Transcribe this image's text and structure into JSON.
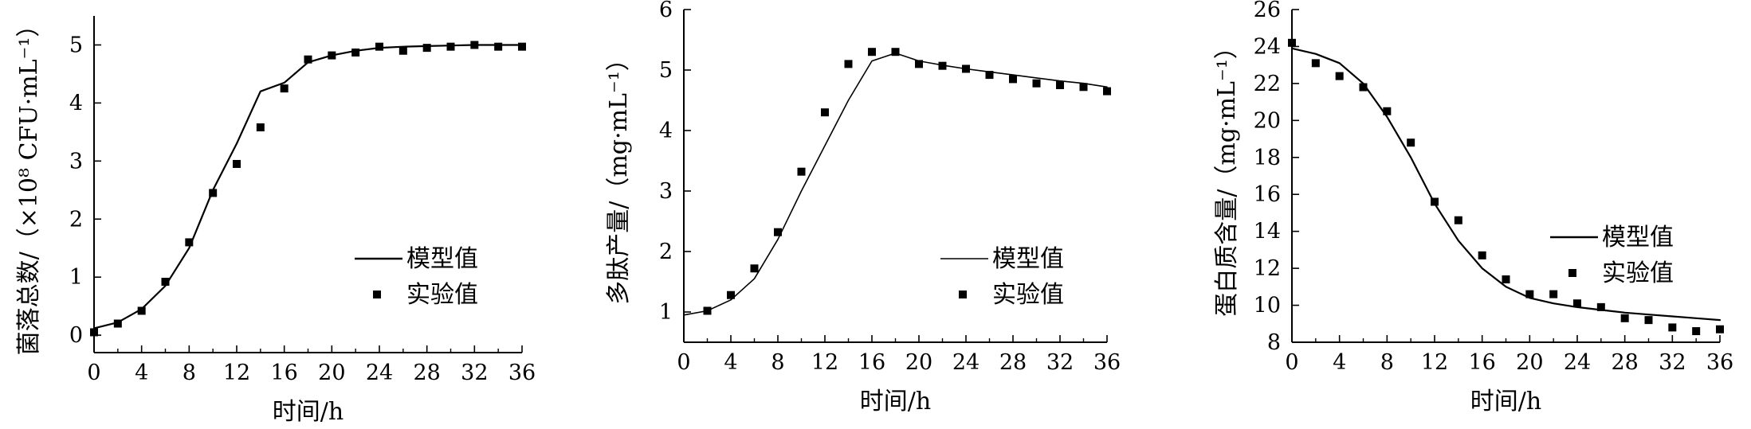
{
  "chart_data": [
    {
      "type": "line",
      "xlabel": "时间/h",
      "ylabel": "菌落总数/（×10⁸ CFU·mL⁻¹）",
      "xlim": [
        0,
        36
      ],
      "ylim": [
        -0.3,
        5.5
      ],
      "xticks": [
        "0",
        "4",
        "8",
        "12",
        "16",
        "20",
        "24",
        "28",
        "32",
        "36"
      ],
      "yticks": [
        "0",
        "1",
        "2",
        "3",
        "4",
        "5"
      ],
      "legend_position": "right-middle",
      "series": [
        {
          "name": "模型值",
          "style": "line",
          "x": [
            0,
            2,
            4,
            6,
            8,
            10,
            12,
            14,
            16,
            18,
            20,
            22,
            24,
            26,
            28,
            30,
            32,
            34,
            36
          ],
          "y": [
            0.12,
            0.22,
            0.45,
            0.85,
            1.5,
            2.5,
            3.3,
            4.2,
            4.35,
            4.7,
            4.82,
            4.9,
            4.95,
            4.97,
            4.98,
            4.99,
            5.0,
            5.0,
            5.0
          ]
        },
        {
          "name": "实验值",
          "style": "points",
          "x": [
            0,
            2,
            4,
            6,
            8,
            10,
            12,
            14,
            16,
            18,
            20,
            22,
            24,
            26,
            28,
            30,
            32,
            34,
            36
          ],
          "y": [
            0.05,
            0.2,
            0.42,
            0.92,
            1.6,
            2.45,
            2.95,
            3.58,
            4.25,
            4.75,
            4.82,
            4.87,
            4.97,
            4.9,
            4.95,
            4.97,
            5.0,
            4.97,
            4.97
          ]
        }
      ]
    },
    {
      "type": "line",
      "xlabel": "时间/h",
      "ylabel": "多肽产量/（mg·mL⁻¹）",
      "xlim": [
        0,
        36
      ],
      "ylim": [
        0.5,
        6
      ],
      "xticks": [
        "0",
        "4",
        "8",
        "12",
        "16",
        "20",
        "24",
        "28",
        "32",
        "36"
      ],
      "yticks": [
        "1",
        "2",
        "3",
        "4",
        "5",
        "6"
      ],
      "legend_position": "right-middle",
      "series": [
        {
          "name": "模型值",
          "style": "line",
          "x": [
            0,
            2,
            4,
            6,
            8,
            10,
            12,
            14,
            16,
            18,
            20,
            22,
            24,
            26,
            28,
            30,
            32,
            34,
            36
          ],
          "y": [
            0.95,
            1.02,
            1.2,
            1.55,
            2.2,
            3.0,
            3.75,
            4.5,
            5.15,
            5.28,
            5.15,
            5.08,
            5.02,
            4.97,
            4.92,
            4.87,
            4.82,
            4.78,
            4.72
          ]
        },
        {
          "name": "实验值",
          "style": "points",
          "x": [
            2,
            4,
            6,
            8,
            10,
            12,
            14,
            16,
            18,
            20,
            22,
            24,
            26,
            28,
            30,
            32,
            34,
            36
          ],
          "y": [
            1.02,
            1.28,
            1.72,
            2.32,
            3.32,
            4.3,
            5.1,
            5.3,
            5.3,
            5.1,
            5.07,
            5.02,
            4.92,
            4.85,
            4.78,
            4.75,
            4.72,
            4.65
          ]
        }
      ]
    },
    {
      "type": "line",
      "xlabel": "时间/h",
      "ylabel": "蛋白质含量/（mg·mL⁻¹）",
      "xlim": [
        0,
        36
      ],
      "ylim": [
        8,
        26
      ],
      "xticks": [
        "0",
        "4",
        "8",
        "12",
        "16",
        "20",
        "24",
        "28",
        "32",
        "36"
      ],
      "yticks": [
        "8",
        "10",
        "12",
        "14",
        "16",
        "18",
        "20",
        "22",
        "24",
        "26"
      ],
      "legend_position": "right-middle",
      "series": [
        {
          "name": "模型值",
          "style": "line",
          "x": [
            0,
            2,
            4,
            6,
            8,
            10,
            12,
            14,
            16,
            18,
            20,
            22,
            24,
            26,
            28,
            30,
            32,
            34,
            36
          ],
          "y": [
            23.9,
            23.6,
            23.1,
            22.0,
            20.2,
            18.0,
            15.5,
            13.5,
            12.0,
            11.0,
            10.4,
            10.1,
            9.9,
            9.75,
            9.6,
            9.5,
            9.4,
            9.3,
            9.2
          ]
        },
        {
          "name": "实验值",
          "style": "points",
          "x": [
            0,
            2,
            4,
            6,
            8,
            10,
            12,
            14,
            16,
            18,
            20,
            22,
            24,
            26,
            28,
            30,
            32,
            34,
            36
          ],
          "y": [
            24.2,
            23.1,
            22.4,
            21.8,
            20.5,
            18.8,
            15.6,
            14.6,
            12.7,
            11.4,
            10.6,
            10.6,
            10.1,
            9.9,
            9.3,
            9.2,
            8.8,
            8.6,
            8.7
          ]
        }
      ]
    }
  ]
}
